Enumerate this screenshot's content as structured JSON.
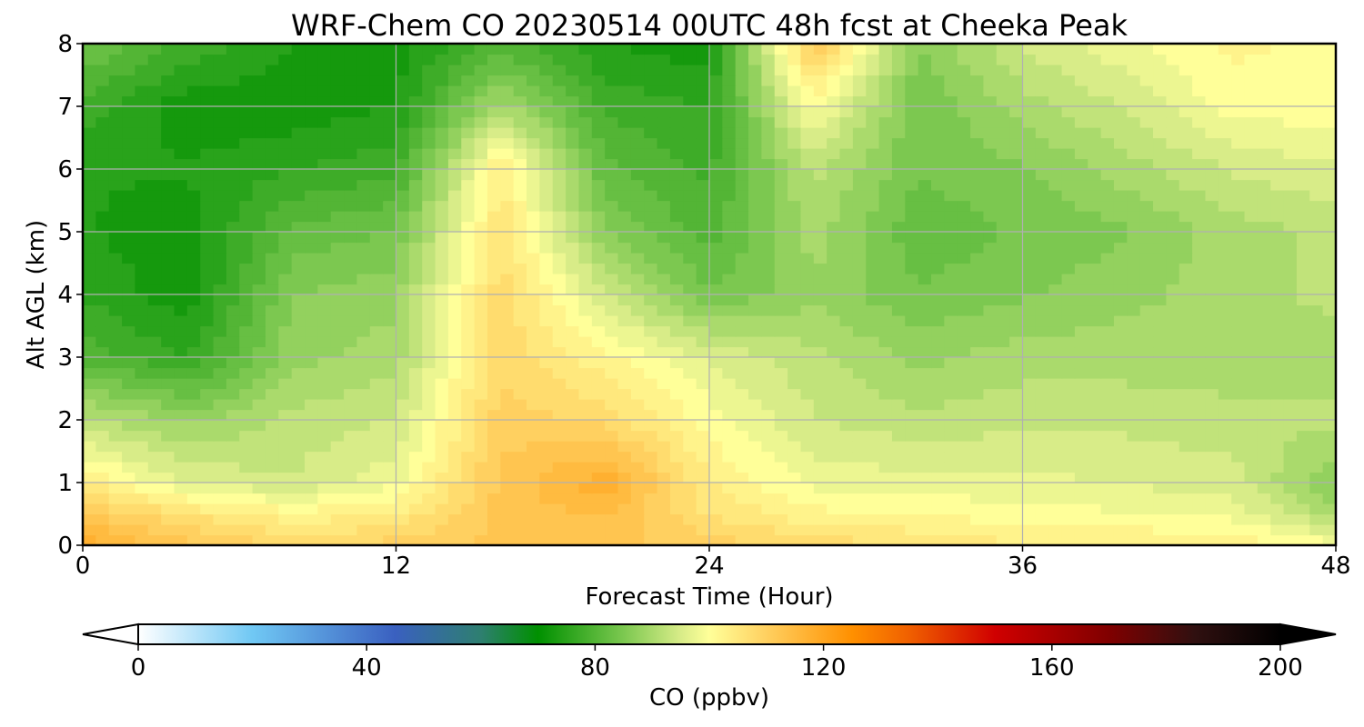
{
  "chart_data": {
    "type": "heatmap",
    "title": "WRF-Chem CO  20230514 00UTC 48h fcst at Cheeka Peak",
    "xlabel": "Forecast Time (Hour)",
    "ylabel": "Alt AGL (km)",
    "xlim": [
      0,
      48
    ],
    "ylim": [
      0,
      8
    ],
    "x_ticks": [
      0,
      12,
      24,
      36,
      48
    ],
    "y_ticks": [
      0,
      1,
      2,
      3,
      4,
      5,
      6,
      7,
      8
    ],
    "grid": true,
    "colorbar": {
      "label": "CO  (ppbv)",
      "range": [
        0,
        200
      ],
      "ticks": [
        0,
        40,
        80,
        120,
        160,
        200
      ],
      "extend": "both",
      "stops": [
        {
          "v": 0,
          "c": "#ffffff"
        },
        {
          "v": 20,
          "c": "#70c8f4"
        },
        {
          "v": 45,
          "c": "#3a60c0"
        },
        {
          "v": 60,
          "c": "#2e7f70"
        },
        {
          "v": 70,
          "c": "#009000"
        },
        {
          "v": 85,
          "c": "#7cc850"
        },
        {
          "v": 95,
          "c": "#d8ec88"
        },
        {
          "v": 100,
          "c": "#ffff99"
        },
        {
          "v": 110,
          "c": "#ffd060"
        },
        {
          "v": 125,
          "c": "#ff9000"
        },
        {
          "v": 135,
          "c": "#f06000"
        },
        {
          "v": 150,
          "c": "#d00000"
        },
        {
          "v": 170,
          "c": "#800000"
        },
        {
          "v": 185,
          "c": "#301010"
        },
        {
          "v": 200,
          "c": "#000000"
        }
      ]
    },
    "x_hours": [
      0,
      4,
      8,
      12,
      16,
      20,
      24,
      28,
      32,
      36,
      40,
      44,
      48
    ],
    "z_km": [
      0,
      0.5,
      1,
      2,
      3,
      4,
      5,
      6,
      7,
      8
    ],
    "co_ppbv": [
      [
        118,
        112,
        108,
        110,
        112,
        112,
        110,
        108,
        106,
        104,
        104,
        103,
        100
      ],
      [
        112,
        106,
        102,
        104,
        112,
        114,
        106,
        102,
        101,
        100,
        99,
        98,
        90
      ],
      [
        104,
        96,
        94,
        98,
        112,
        118,
        104,
        98,
        97,
        97,
        96,
        95,
        86
      ],
      [
        92,
        88,
        92,
        94,
        110,
        108,
        100,
        94,
        92,
        93,
        93,
        92,
        92
      ],
      [
        80,
        76,
        88,
        90,
        108,
        102,
        96,
        92,
        88,
        90,
        90,
        90,
        90
      ],
      [
        76,
        72,
        86,
        88,
        108,
        94,
        84,
        88,
        84,
        86,
        88,
        90,
        92
      ],
      [
        74,
        72,
        82,
        84,
        106,
        86,
        80,
        90,
        82,
        84,
        86,
        90,
        92
      ],
      [
        74,
        74,
        76,
        78,
        104,
        82,
        78,
        92,
        84,
        86,
        90,
        94,
        96
      ],
      [
        78,
        72,
        72,
        74,
        90,
        78,
        76,
        100,
        84,
        90,
        94,
        100,
        100
      ],
      [
        84,
        78,
        74,
        72,
        80,
        74,
        72,
        112,
        86,
        94,
        98,
        102,
        100
      ]
    ]
  }
}
